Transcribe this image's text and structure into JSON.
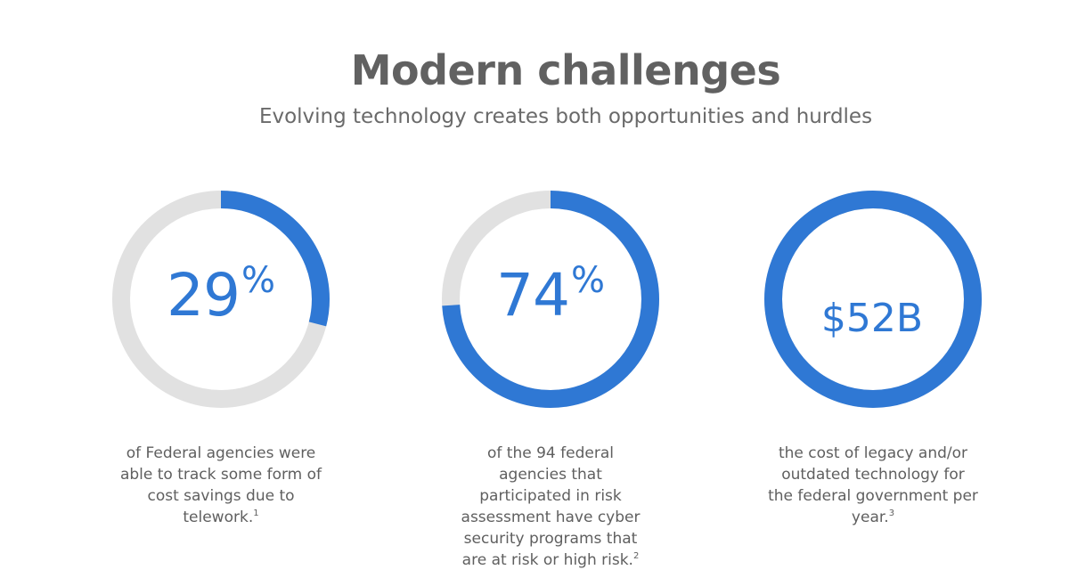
{
  "header": {
    "title": "Modern challenges",
    "subtitle": "Evolving technology creates both opportunities and hurdles"
  },
  "colors": {
    "track": "#e1e1e1",
    "accent": "#2f78d4"
  },
  "chart_data": [
    {
      "type": "pie",
      "values": [
        29,
        71
      ],
      "value_number": "29",
      "value_suffix": "%",
      "caption": "of Federal agencies were able to track some form of cost savings due to telework.",
      "footnote": "1"
    },
    {
      "type": "pie",
      "values": [
        74,
        26
      ],
      "value_number": "74",
      "value_suffix": "%",
      "caption": "of the 94 federal agencies that participated in risk assessment have cyber security programs that are at risk or high risk.",
      "footnote": "2"
    },
    {
      "type": "pie",
      "values": [
        100,
        0
      ],
      "value_number": "$52B",
      "value_suffix": "",
      "caption": "the cost of legacy and/or outdated technology for the federal government per year.",
      "footnote": "3"
    }
  ]
}
